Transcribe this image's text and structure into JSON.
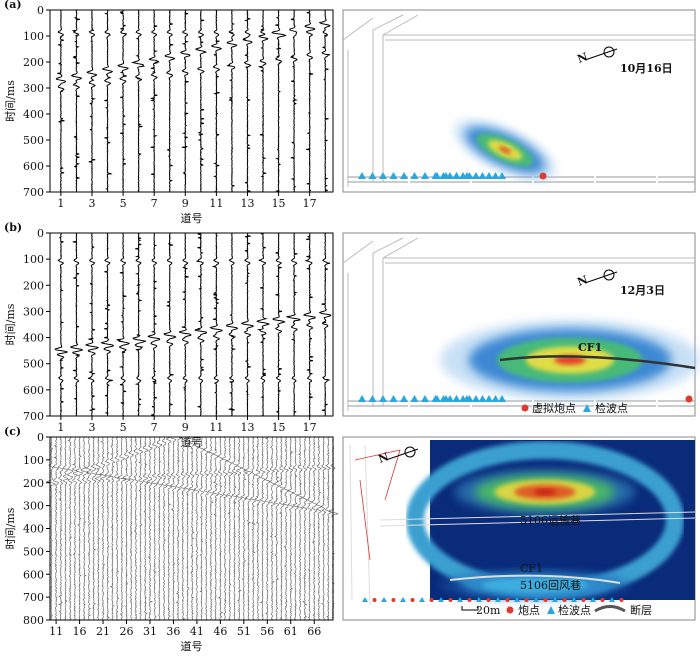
{
  "chart_data": [
    {
      "type": "wiggle",
      "panel": "(a)",
      "ylabel": "时间/ms",
      "xlabel": "道号",
      "ylim": [
        0,
        700
      ],
      "yticks": [
        0,
        100,
        200,
        300,
        400,
        500,
        600,
        700
      ],
      "xlim": [
        0.3,
        18.5
      ],
      "xticks": [
        1,
        3,
        5,
        7,
        9,
        11,
        13,
        15,
        17
      ]
    },
    {
      "type": "wiggle",
      "panel": "(b)",
      "ylabel": "时间/ms",
      "xlabel": "道号",
      "ylim": [
        0,
        700
      ],
      "yticks": [
        0,
        100,
        200,
        300,
        400,
        500,
        600,
        700
      ],
      "xlim": [
        0.3,
        18.5
      ],
      "xticks": [
        1,
        3,
        5,
        7,
        9,
        11,
        13,
        15,
        17
      ]
    },
    {
      "type": "wiggle",
      "panel": "(c)",
      "ylabel": "时间/ms",
      "xlabel": "道号",
      "ylim": [
        0,
        800
      ],
      "yticks": [
        0,
        100,
        200,
        300,
        400,
        500,
        600,
        700,
        800
      ],
      "xlim": [
        9.7,
        70
      ],
      "xticks": [
        11,
        16,
        21,
        26,
        31,
        36,
        41,
        46,
        51,
        56,
        61,
        66
      ]
    }
  ],
  "maps": [
    {
      "north": "N",
      "date": "10月16日"
    },
    {
      "north": "N",
      "date": "12月3日",
      "fault": "CF1",
      "legend": [
        "虚拟炮点",
        "检波点"
      ]
    },
    {
      "north": "N",
      "roadway1": "5106运输巷",
      "fault": "CF1",
      "roadway2": "5106回风巷",
      "scale": "20m",
      "legend": [
        "炮点",
        "检波点",
        "断层"
      ]
    }
  ]
}
